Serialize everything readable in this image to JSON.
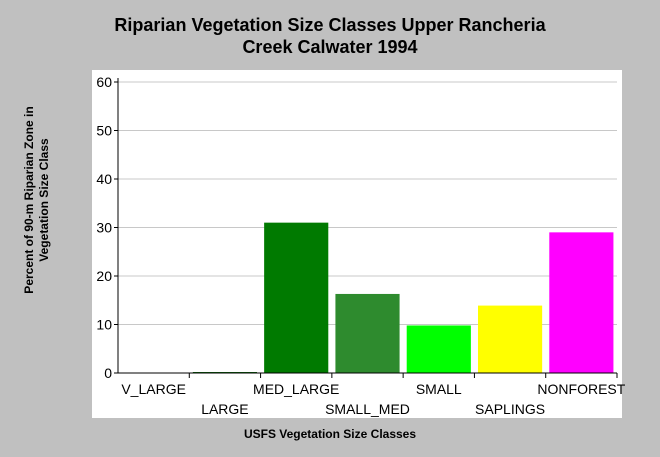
{
  "chart_data": {
    "type": "bar",
    "title_lines": [
      "Riparian Vegetation Size Classes Upper Rancheria",
      "Creek Calwater 1994"
    ],
    "xlabel": "USFS Vegetation Size Classes",
    "ylabel": "Percent of 90-m Riparian Zone in Vegetation Size Class",
    "categories": [
      "V_LARGE",
      "LARGE",
      "MED_LARGE",
      "SMALL_MED",
      "SMALL",
      "SAPLINGS",
      "NONFOREST"
    ],
    "values": [
      0,
      0.2,
      31,
      16.3,
      9.8,
      13.9,
      29
    ],
    "colors": [
      "#006400",
      "#006400",
      "#007a00",
      "#2e8b2e",
      "#00ff00",
      "#ffff00",
      "#ff00ff"
    ],
    "ylim": [
      0,
      60
    ],
    "yticks": [
      0,
      10,
      20,
      30,
      40,
      50,
      60
    ],
    "grid": true
  }
}
